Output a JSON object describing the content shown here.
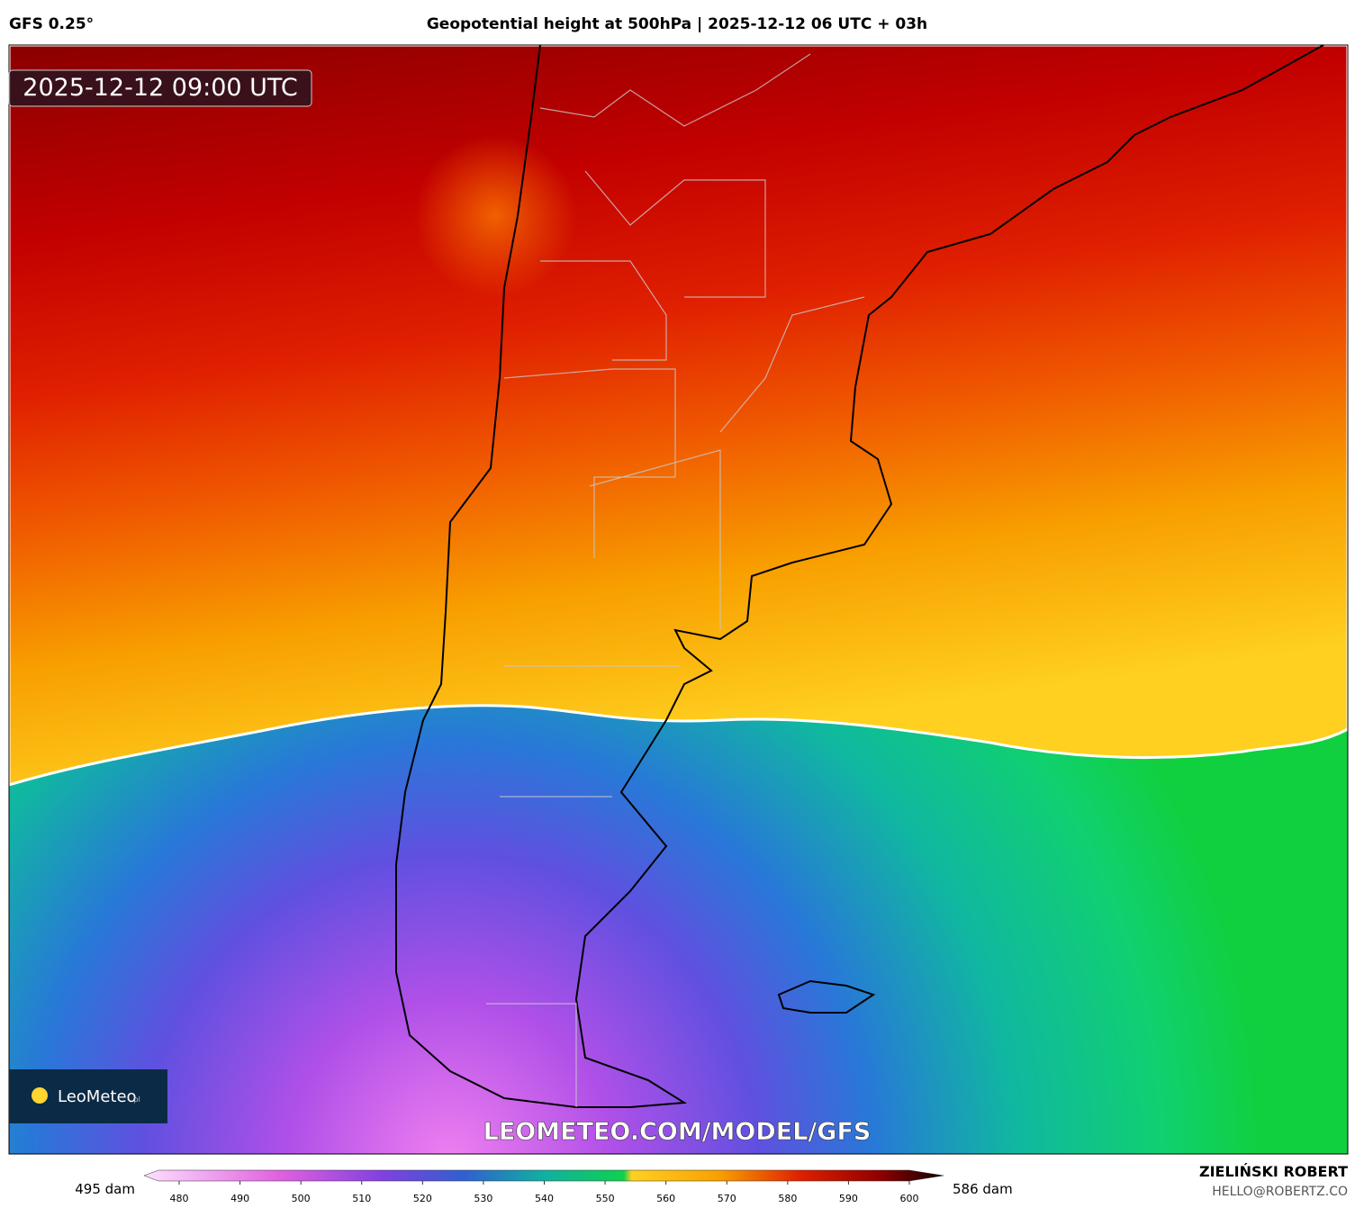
{
  "header": {
    "model": "GFS 0.25°",
    "title": "Geopotential height at 500hPa | 2025-12-12 06 UTC + 03h"
  },
  "map": {
    "timestamp": "2025-12-12 09:00 UTC",
    "watermark": "LEOMETEO.COM/MODEL/GFS"
  },
  "logo": {
    "brand": "LeoMeteo",
    "suffix": ".pl"
  },
  "legend": {
    "min_label": "495 dam",
    "max_label": "586 dam",
    "ticks": [
      480,
      490,
      500,
      510,
      520,
      530,
      540,
      550,
      560,
      570,
      580,
      590,
      600
    ]
  },
  "credit": {
    "name": "ZIELIŃSKI ROBERT",
    "email": "HELLO@ROBERTZ.CO"
  }
}
